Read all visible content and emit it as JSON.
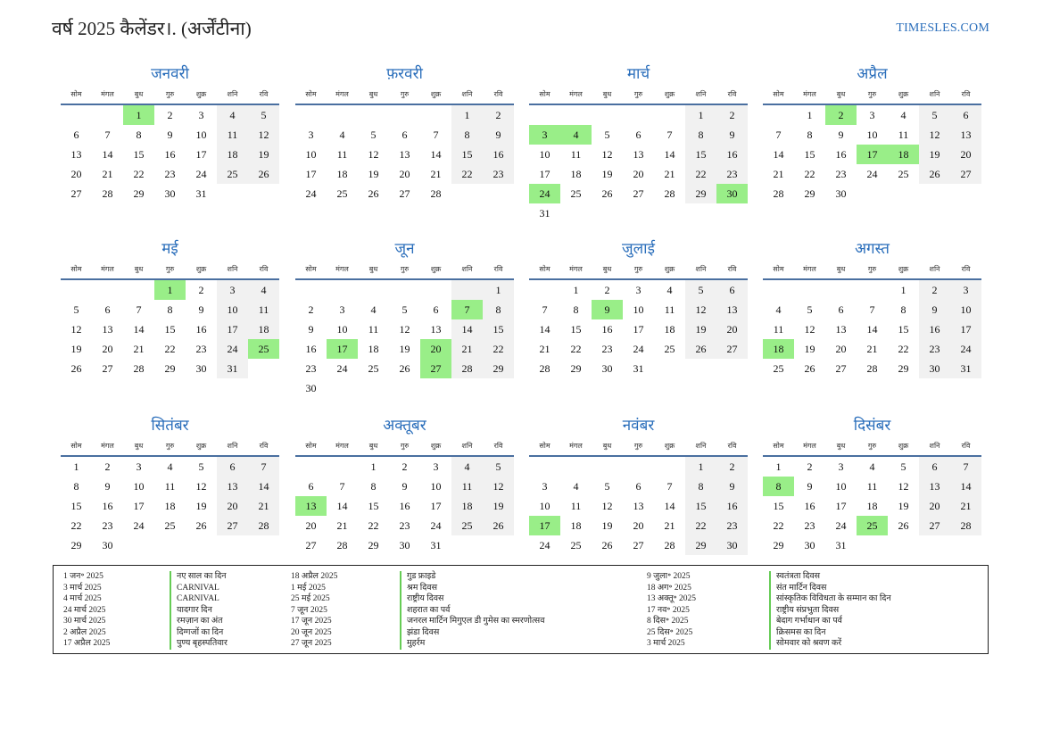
{
  "title": "वर्ष 2025 कैलेंडर।. (अर्जेंटीना)",
  "site": "TIMESLES.COM",
  "colors": {
    "accent": "#2a6ebb",
    "holiday": "#99ee88",
    "weekend": "#f1f1f1"
  },
  "weekdays": [
    "सोम",
    "मंगल",
    "बुध",
    "गुरु",
    "शुक्र",
    "शनि",
    "रवि"
  ],
  "months": [
    {
      "name": "जनवरी",
      "offset": 2,
      "days": 31,
      "holidays": [
        1
      ]
    },
    {
      "name": "फ़रवरी",
      "offset": 5,
      "days": 28,
      "holidays": []
    },
    {
      "name": "मार्च",
      "offset": 5,
      "days": 31,
      "holidays": [
        3,
        4,
        24,
        30
      ]
    },
    {
      "name": "अप्रैल",
      "offset": 1,
      "days": 30,
      "holidays": [
        2,
        17,
        18
      ]
    },
    {
      "name": "मई",
      "offset": 3,
      "days": 31,
      "holidays": [
        1,
        25
      ]
    },
    {
      "name": "जून",
      "offset": 6,
      "days": 30,
      "holidays": [
        7,
        17,
        20,
        27
      ]
    },
    {
      "name": "जुलाई",
      "offset": 1,
      "days": 31,
      "holidays": [
        9
      ]
    },
    {
      "name": "अगस्त",
      "offset": 4,
      "days": 31,
      "holidays": [
        18
      ]
    },
    {
      "name": "सितंबर",
      "offset": 0,
      "days": 30,
      "holidays": []
    },
    {
      "name": "अक्तूबर",
      "offset": 2,
      "days": 31,
      "holidays": [
        13
      ]
    },
    {
      "name": "नवंबर",
      "offset": 5,
      "days": 30,
      "holidays": [
        17
      ]
    },
    {
      "name": "दिसंबर",
      "offset": 0,
      "days": 31,
      "holidays": [
        8,
        25
      ]
    }
  ],
  "legend": {
    "col1_dates": [
      "1 जन॰ 2025",
      "3 मार्च 2025",
      "4 मार्च 2025",
      "24 मार्च 2025",
      "30 मार्च 2025",
      "2 अप्रैल 2025",
      "17 अप्रैल 2025"
    ],
    "col1_names": [
      "नए साल का दिन",
      "CARNIVAL",
      "CARNIVAL",
      "यादगार दिन",
      "रमज़ान का अंत",
      "दिग्गजों का दिन",
      "पुण्य बृहस्पतिवार"
    ],
    "col2_dates": [
      "18 अप्रैल 2025",
      "1 मई 2025",
      "25 मई 2025",
      "7 जून 2025",
      "17 जून 2025",
      "20 जून 2025",
      "27 जून 2025"
    ],
    "col2_names": [
      "गुड फ्राइडे",
      "श्रम दिवस",
      "राष्ट्रीय दिवस",
      "शहरात का पर्व",
      "जनरल मार्टिन मिगुएल डी गुमेस का स्मरणोत्सव",
      "झंडा दिवस",
      "मुहर्रम"
    ],
    "col3_dates": [
      "9 जुला॰ 2025",
      "18 अग॰ 2025",
      "13 अक्तू॰ 2025",
      "17 नव॰ 2025",
      "8 दिस॰ 2025",
      "25 दिस॰ 2025",
      "3 मार्च 2025"
    ],
    "col3_names": [
      "स्वतंत्रता दिवस",
      "संत मार्टिन दिवस",
      "सांस्कृतिक विविधता के सम्मान का दिन",
      "राष्ट्रीय संप्रभुता दिवस",
      "बेदाग गर्भाधान का पर्व",
      "क्रिसमस का दिन",
      "सोमवार को श्रवण करें"
    ]
  }
}
